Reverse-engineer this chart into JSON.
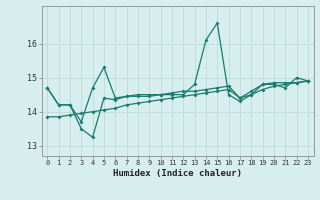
{
  "title": "",
  "xlabel": "Humidex (Indice chaleur)",
  "ylabel": "",
  "x": [
    0,
    1,
    2,
    3,
    4,
    5,
    6,
    7,
    8,
    9,
    10,
    11,
    12,
    13,
    14,
    15,
    16,
    17,
    18,
    19,
    20,
    21,
    22,
    23
  ],
  "line1": [
    14.7,
    14.2,
    14.2,
    13.7,
    14.7,
    15.3,
    14.4,
    14.45,
    14.45,
    14.45,
    14.5,
    14.5,
    14.5,
    14.8,
    16.1,
    16.6,
    14.5,
    14.3,
    14.5,
    14.8,
    14.8,
    14.7,
    15.0,
    14.9
  ],
  "line2": [
    14.7,
    14.2,
    14.2,
    13.5,
    13.25,
    14.4,
    14.35,
    14.45,
    14.5,
    14.5,
    14.5,
    14.55,
    14.6,
    14.6,
    14.65,
    14.7,
    14.75,
    14.4,
    14.6,
    14.8,
    14.85,
    14.85,
    14.85,
    14.9
  ],
  "line3": [
    13.85,
    13.85,
    13.9,
    13.95,
    14.0,
    14.05,
    14.1,
    14.2,
    14.25,
    14.3,
    14.35,
    14.4,
    14.45,
    14.5,
    14.55,
    14.6,
    14.65,
    14.4,
    14.5,
    14.65,
    14.75,
    14.8,
    14.85,
    14.9
  ],
  "ylim": [
    12.7,
    17.1
  ],
  "yticks": [
    13,
    14,
    15,
    16
  ],
  "xticks": [
    0,
    1,
    2,
    3,
    4,
    5,
    6,
    7,
    8,
    9,
    10,
    11,
    12,
    13,
    14,
    15,
    16,
    17,
    18,
    19,
    20,
    21,
    22,
    23
  ],
  "bg_color": "#d6eeee",
  "line_color": "#1a7a6e",
  "grid_color": "#c0dede"
}
